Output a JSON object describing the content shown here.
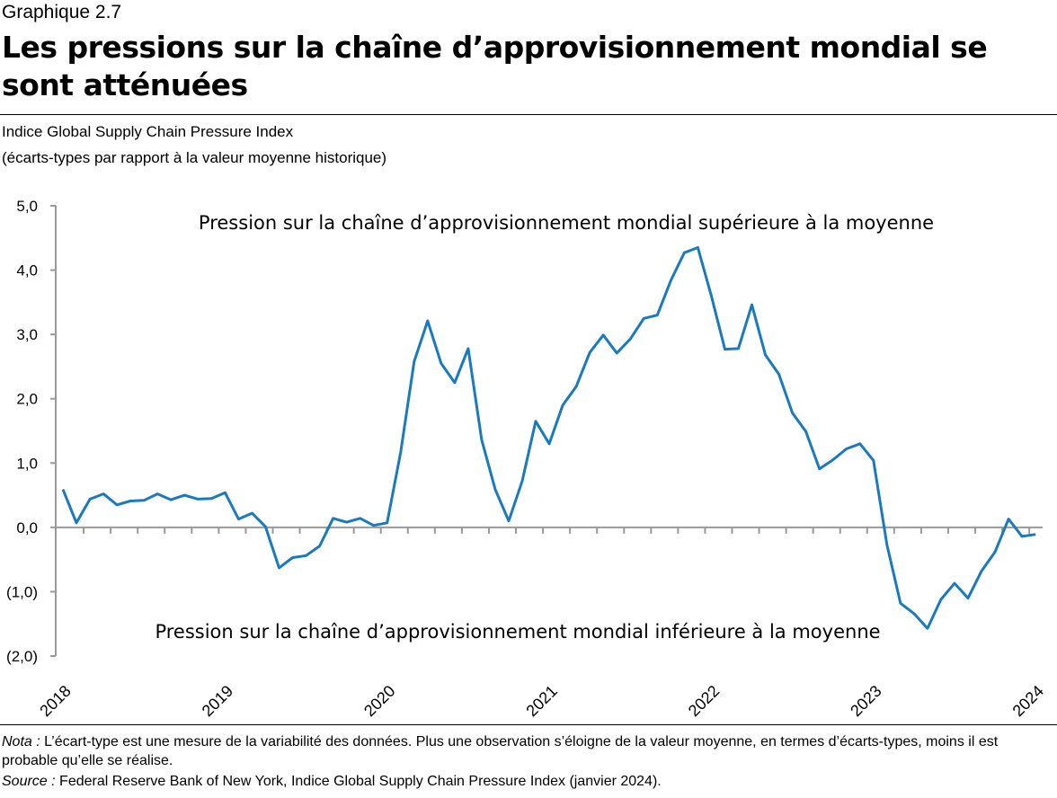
{
  "header": {
    "label": "Graphique 2.7",
    "title": "Les pressions sur la chaîne d’approvisionnement mondial se sont atténuées",
    "subtitle1": "Indice Global Supply Chain Pressure Index",
    "subtitle2": "(écarts-types par rapport à la valeur moyenne historique)"
  },
  "footer": {
    "nota_label": "Nota :",
    "nota": " L’écart-type est une mesure de la variabilité des données. Plus une observation s’éloigne de la valeur moyenne, en termes d’écarts-types, moins il est probable qu’elle se réalise.",
    "source_label": "Source :",
    "source": " Federal Reserve Bank of New York, Indice Global Supply Chain Pressure Index (janvier 2024)."
  },
  "chart_data": {
    "type": "line",
    "line_color": "#1a7abf",
    "ylim": [
      -2,
      5
    ],
    "y_ticks": [
      5,
      4,
      3,
      2,
      1,
      0,
      -1,
      -2
    ],
    "y_tick_labels": [
      "5,0",
      "4,0",
      "3,0",
      "2,0",
      "1,0",
      "0,0",
      "(1,0)",
      "(2,0)"
    ],
    "x_tick_labels": [
      "2018",
      "2019",
      "2020",
      "2021",
      "2022",
      "2023",
      "2024"
    ],
    "annotations": {
      "above": "Pression sur la chaîne d’approvisionnement mondial supérieure à la moyenne",
      "below": "Pression sur la chaîne d’approvisionnement mondial inférieure à la moyenne"
    },
    "x_start": "2018-01",
    "x_end": "2024-01",
    "frequency": "monthly",
    "values": [
      0.59,
      0.07,
      0.44,
      0.52,
      0.35,
      0.41,
      0.42,
      0.52,
      0.43,
      0.5,
      0.44,
      0.45,
      0.54,
      0.13,
      0.22,
      0.01,
      -0.63,
      -0.47,
      -0.44,
      -0.29,
      0.14,
      0.08,
      0.14,
      0.03,
      0.07,
      1.17,
      2.58,
      3.21,
      2.55,
      2.25,
      2.78,
      1.36,
      0.59,
      0.1,
      0.72,
      1.65,
      1.3,
      1.9,
      2.19,
      2.72,
      2.99,
      2.71,
      2.93,
      3.25,
      3.3,
      3.84,
      4.27,
      4.35,
      3.6,
      2.77,
      2.78,
      3.46,
      2.68,
      2.38,
      1.78,
      1.49,
      0.91,
      1.05,
      1.22,
      1.3,
      1.04,
      -0.27,
      -1.18,
      -1.34,
      -1.57,
      -1.12,
      -0.87,
      -1.1,
      -0.68,
      -0.38,
      0.13,
      -0.14,
      -0.11
    ]
  }
}
